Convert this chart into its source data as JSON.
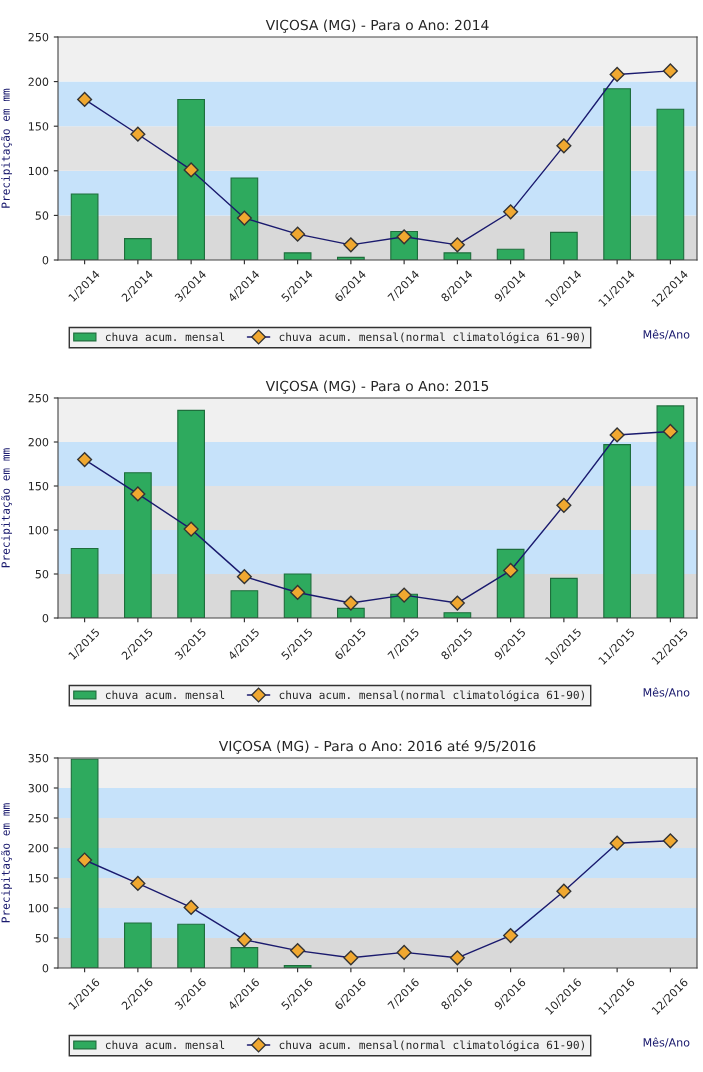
{
  "chart_data": [
    {
      "type": "bar",
      "title": "VIÇOSA (MG) - Para o Ano: 2014",
      "xlabel": "Mês/Ano",
      "ylabel": "Precipitação em mm",
      "categories": [
        "1/2014",
        "2/2014",
        "3/2014",
        "4/2014",
        "5/2014",
        "6/2014",
        "7/2014",
        "8/2014",
        "9/2014",
        "10/2014",
        "11/2014",
        "12/2014"
      ],
      "series": [
        {
          "name": "chuva acum. mensal",
          "color": "#2eaa5e",
          "values": [
            74,
            24,
            180,
            92,
            8,
            3,
            32,
            8,
            12,
            31,
            192,
            169
          ]
        },
        {
          "name": "chuva acum. mensal(normal climatológica 61-90)",
          "type": "line",
          "color": "#f0a830",
          "marker": "diamond",
          "line_style": "solid",
          "values": [
            180,
            141,
            101,
            47,
            29,
            17,
            26,
            17,
            54,
            128,
            208,
            212
          ]
        }
      ],
      "ylim": [
        0,
        250
      ],
      "yticks": [
        0,
        50,
        100,
        150,
        200,
        250
      ],
      "grid": false,
      "legend": "bottom",
      "bands": [
        {
          "axis": "y",
          "from": 0,
          "to": 50,
          "color": "#d9d9d9"
        },
        {
          "axis": "y",
          "from": 50,
          "to": 100,
          "color": "#c6e2fa"
        },
        {
          "axis": "y",
          "from": 100,
          "to": 150,
          "color": "#e2e2e2"
        },
        {
          "axis": "y",
          "from": 150,
          "to": 200,
          "color": "#c6e2fa"
        },
        {
          "axis": "y",
          "from": 200,
          "to": 250,
          "color": "#f0f0f0"
        }
      ]
    },
    {
      "type": "bar",
      "title": "VIÇOSA (MG) - Para o Ano: 2015",
      "xlabel": "Mês/Ano",
      "ylabel": "Precipitação em mm",
      "categories": [
        "1/2015",
        "2/2015",
        "3/2015",
        "4/2015",
        "5/2015",
        "6/2015",
        "7/2015",
        "8/2015",
        "9/2015",
        "10/2015",
        "11/2015",
        "12/2015"
      ],
      "series": [
        {
          "name": "chuva acum. mensal",
          "color": "#2eaa5e",
          "values": [
            79,
            165,
            236,
            31,
            50,
            11,
            27,
            6,
            78,
            45,
            197,
            241
          ]
        },
        {
          "name": "chuva acum. mensal(normal climatológica 61-90)",
          "type": "line",
          "color": "#f0a830",
          "marker": "diamond",
          "line_style": "solid",
          "values": [
            180,
            141,
            101,
            47,
            29,
            17,
            26,
            17,
            54,
            128,
            208,
            212
          ]
        }
      ],
      "ylim": [
        0,
        250
      ],
      "yticks": [
        0,
        50,
        100,
        150,
        200,
        250
      ],
      "grid": false,
      "legend": "bottom",
      "bands": [
        {
          "axis": "y",
          "from": 0,
          "to": 50,
          "color": "#d9d9d9"
        },
        {
          "axis": "y",
          "from": 50,
          "to": 100,
          "color": "#c6e2fa"
        },
        {
          "axis": "y",
          "from": 100,
          "to": 150,
          "color": "#e2e2e2"
        },
        {
          "axis": "y",
          "from": 150,
          "to": 200,
          "color": "#c6e2fa"
        },
        {
          "axis": "y",
          "from": 200,
          "to": 250,
          "color": "#f0f0f0"
        }
      ]
    },
    {
      "type": "bar",
      "title": "VIÇOSA (MG) - Para o Ano: 2016 até 9/5/2016",
      "xlabel": "Mês/Ano",
      "ylabel": "Precipitação em mm",
      "categories": [
        "1/2016",
        "2/2016",
        "3/2016",
        "4/2016",
        "5/2016",
        "6/2016",
        "7/2016",
        "8/2016",
        "9/2016",
        "10/2016",
        "11/2016",
        "12/2016"
      ],
      "series": [
        {
          "name": "chuva acum. mensal",
          "color": "#2eaa5e",
          "values": [
            348,
            75,
            73,
            34,
            4,
            null,
            null,
            null,
            null,
            null,
            null,
            null
          ]
        },
        {
          "name": "chuva acum. mensal(normal climatológica 61-90)",
          "type": "line",
          "color": "#f0a830",
          "marker": "diamond",
          "line_style": "solid",
          "values": [
            180,
            141,
            101,
            47,
            29,
            17,
            26,
            17,
            54,
            128,
            208,
            212
          ]
        }
      ],
      "ylim": [
        0,
        350
      ],
      "yticks": [
        0,
        50,
        100,
        150,
        200,
        250,
        300,
        350
      ],
      "grid": false,
      "legend": "bottom",
      "bands": [
        {
          "axis": "y",
          "from": 0,
          "to": 50,
          "color": "#d9d9d9"
        },
        {
          "axis": "y",
          "from": 50,
          "to": 100,
          "color": "#c6e2fa"
        },
        {
          "axis": "y",
          "from": 100,
          "to": 150,
          "color": "#e2e2e2"
        },
        {
          "axis": "y",
          "from": 150,
          "to": 200,
          "color": "#c6e2fa"
        },
        {
          "axis": "y",
          "from": 200,
          "to": 250,
          "color": "#e2e2e2"
        },
        {
          "axis": "y",
          "from": 250,
          "to": 300,
          "color": "#c6e2fa"
        },
        {
          "axis": "y",
          "from": 300,
          "to": 350,
          "color": "#f0f0f0"
        }
      ]
    }
  ]
}
